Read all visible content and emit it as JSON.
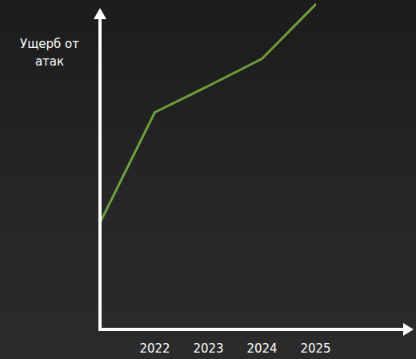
{
  "chart_data": {
    "type": "line",
    "categories": [
      null,
      "2022",
      "2023",
      "2024",
      "2025"
    ],
    "values": [
      137,
      272,
      305,
      339,
      407
    ],
    "color": "#6f9e3c",
    "ylim": [
      0,
      410
    ],
    "y_label": "Ущерб от атак",
    "tick_labels": "x"
  }
}
